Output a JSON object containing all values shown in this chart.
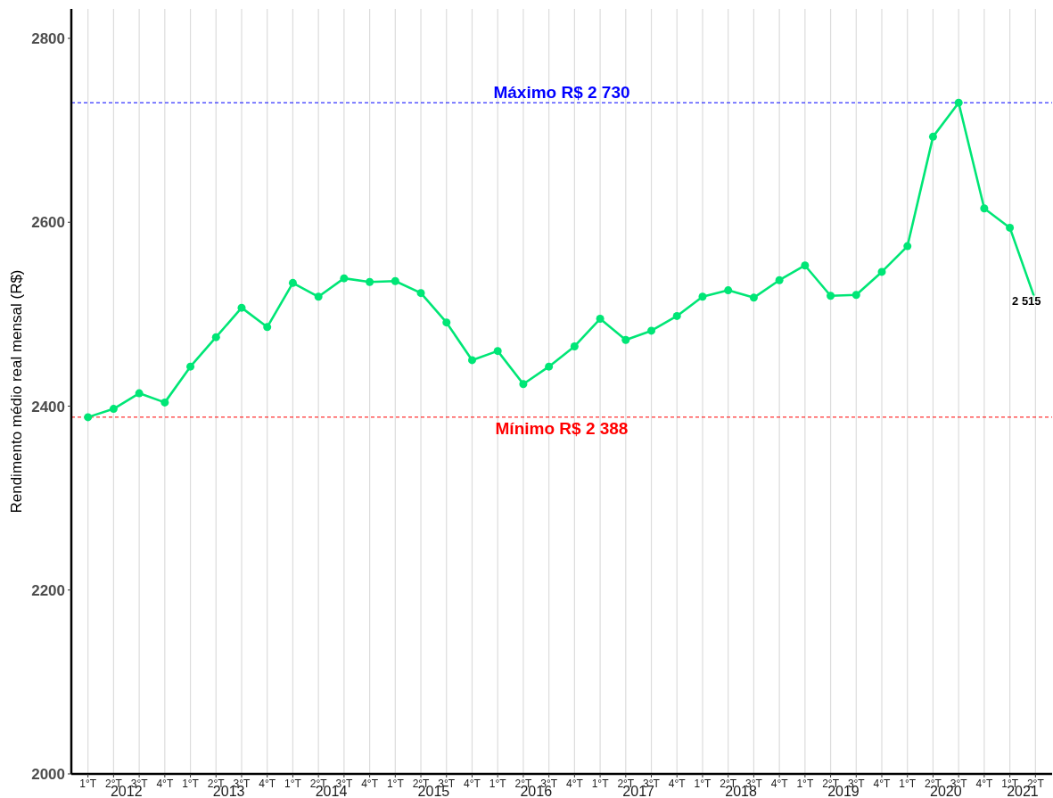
{
  "chart_data": {
    "type": "line",
    "ylabel": "Rendimento médio real mensal (R$)",
    "categories": [
      "1°T",
      "2°T",
      "3°T",
      "4°T",
      "1°T",
      "2°T",
      "3°T",
      "4°T",
      "1°T",
      "2°T",
      "3°T",
      "4°T",
      "1°T",
      "2°T",
      "3°T",
      "4°T",
      "1°T",
      "2°T",
      "3°T",
      "4°T",
      "1°T",
      "2°T",
      "3°T",
      "4°T",
      "1°T",
      "2°T",
      "3°T",
      "4°T",
      "1°T",
      "2°T",
      "3°T",
      "4°T",
      "1°T",
      "2°T",
      "3°T",
      "4°T",
      "1°T",
      "2°T"
    ],
    "series": [
      {
        "color": "#00e676",
        "values": [
          2388,
          2397,
          2414,
          2404,
          2443,
          2475,
          2507,
          2486,
          2534,
          2519,
          2539,
          2535,
          2536,
          2523,
          2491,
          2450,
          2460,
          2424,
          2443,
          2465,
          2495,
          2472,
          2482,
          2498,
          2519,
          2526,
          2518,
          2537,
          2553,
          2520,
          2521,
          2546,
          2574,
          2693,
          2730,
          2615,
          2594,
          2515
        ],
        "value_labels": [
          null,
          null,
          null,
          null,
          null,
          null,
          null,
          null,
          null,
          null,
          null,
          null,
          null,
          null,
          null,
          null,
          null,
          null,
          null,
          null,
          null,
          null,
          null,
          null,
          null,
          null,
          null,
          null,
          null,
          null,
          null,
          null,
          null,
          null,
          null,
          null,
          null,
          "2 515"
        ]
      }
    ],
    "ylim": [
      2000,
      2832
    ],
    "yticks": [
      2000,
      2200,
      2400,
      2600,
      2800
    ],
    "grid": "x",
    "marker": "circle",
    "line_style": "solid",
    "ref_lines": [
      {
        "axis": "y",
        "value": 2730,
        "label": "Máximo R$ 2 730",
        "color": "#0000ff",
        "line_style": "dashed"
      },
      {
        "axis": "y",
        "value": 2388,
        "label": "Mínimo R$ 2 388",
        "color": "#ff0000",
        "line_style": "dashed"
      }
    ],
    "annotations": [
      "2012",
      "2013",
      "2014",
      "2015",
      "2016",
      "2017",
      "2018",
      "2019",
      "2020",
      "2021"
    ]
  }
}
